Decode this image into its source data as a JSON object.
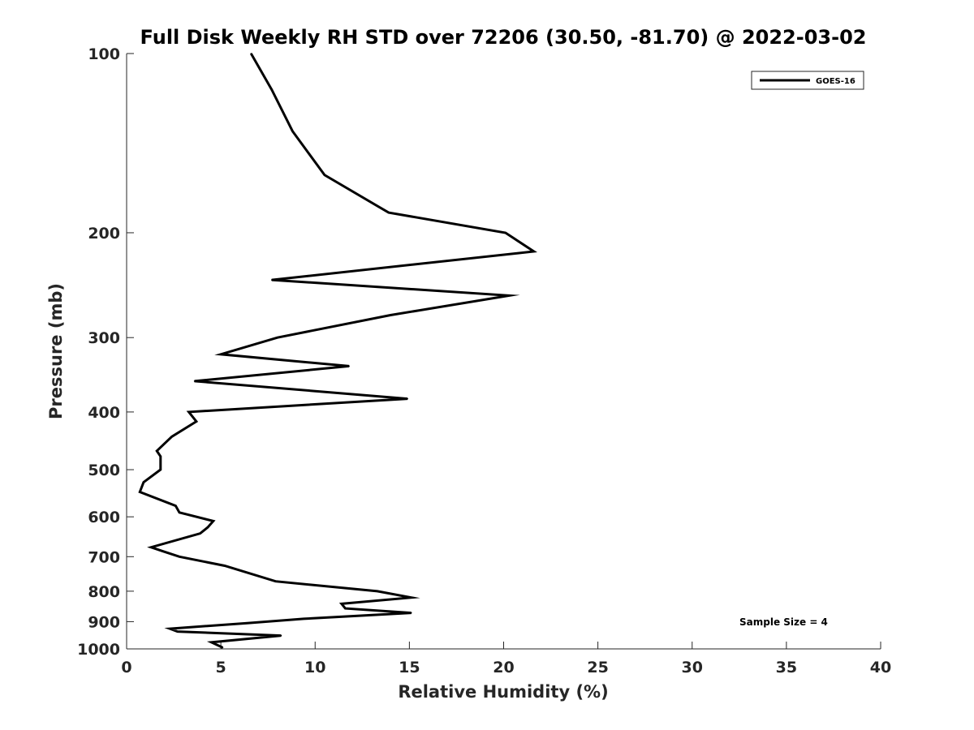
{
  "chart_data": {
    "type": "line",
    "title": "Full Disk Weekly RH STD over 72206 (30.50, -81.70) @ 2022-03-02",
    "xlabel": "Relative Humidity (%)",
    "ylabel": "Pressure (mb)",
    "xlim": [
      0,
      40
    ],
    "ylim": [
      100,
      1000
    ],
    "yscale": "log",
    "yreversed": true,
    "xticks": [
      0,
      5,
      10,
      15,
      20,
      25,
      30,
      35,
      40
    ],
    "yticks": [
      100,
      200,
      300,
      400,
      500,
      600,
      700,
      800,
      900,
      1000
    ],
    "grid": false,
    "legend": {
      "location": "top-right"
    },
    "annotation": "Sample Size = 4",
    "series": [
      {
        "name": "GOES-16",
        "color": "#000000",
        "points": [
          [
            6.6,
            100
          ],
          [
            7.7,
            115
          ],
          [
            8.8,
            135
          ],
          [
            10.5,
            160
          ],
          [
            13.9,
            185
          ],
          [
            20.1,
            200
          ],
          [
            21.6,
            215
          ],
          [
            7.7,
            240
          ],
          [
            20.3,
            255
          ],
          [
            14.0,
            275
          ],
          [
            8.0,
            300
          ],
          [
            5.0,
            320
          ],
          [
            11.8,
            335
          ],
          [
            3.6,
            355
          ],
          [
            14.9,
            380
          ],
          [
            3.3,
            400
          ],
          [
            3.7,
            415
          ],
          [
            2.4,
            440
          ],
          [
            1.6,
            465
          ],
          [
            1.8,
            475
          ],
          [
            1.8,
            500
          ],
          [
            0.9,
            525
          ],
          [
            0.7,
            545
          ],
          [
            2.6,
            575
          ],
          [
            2.8,
            590
          ],
          [
            4.6,
            610
          ],
          [
            4.3,
            625
          ],
          [
            3.9,
            640
          ],
          [
            1.3,
            675
          ],
          [
            1.9,
            685
          ],
          [
            2.8,
            700
          ],
          [
            5.2,
            725
          ],
          [
            7.9,
            770
          ],
          [
            13.3,
            800
          ],
          [
            15.1,
            820
          ],
          [
            11.4,
            840
          ],
          [
            11.6,
            855
          ],
          [
            15.1,
            870
          ],
          [
            9.4,
            890
          ],
          [
            6.4,
            905
          ],
          [
            2.3,
            925
          ],
          [
            2.7,
            935
          ],
          [
            8.2,
            950
          ],
          [
            4.5,
            975
          ],
          [
            5.1,
            995
          ]
        ]
      }
    ]
  }
}
